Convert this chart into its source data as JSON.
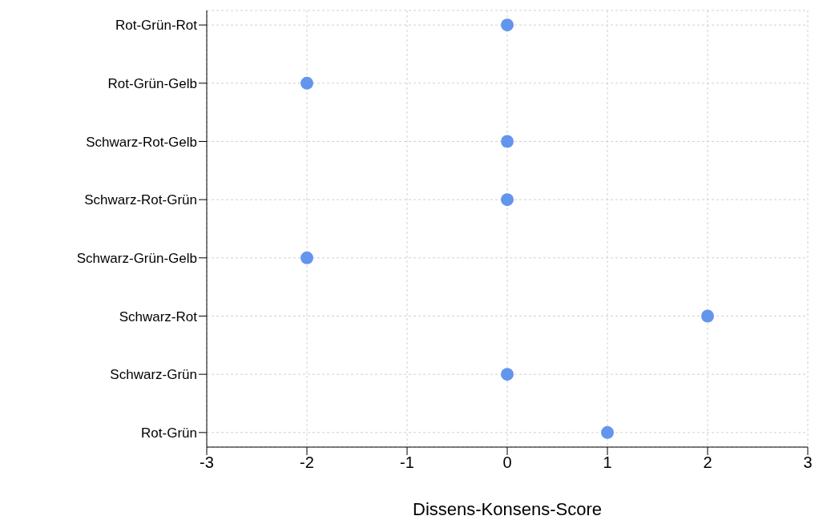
{
  "chart_data": {
    "type": "scatter",
    "orientation": "horizontal",
    "xlabel": "Dissens-Konsens-Score",
    "categories": [
      "Rot-Grün-Rot",
      "Rot-Grün-Gelb",
      "Schwarz-Rot-Gelb",
      "Schwarz-Rot-Grün",
      "Schwarz-Grün-Gelb",
      "Schwarz-Rot",
      "Schwarz-Grün",
      "Rot-Grün"
    ],
    "values": [
      0,
      -2,
      0,
      0,
      -2,
      2,
      0,
      1
    ],
    "color": "#6495ed",
    "marker": "circle",
    "xlim": [
      -3,
      3
    ],
    "xticks": [
      -3,
      -2,
      -1,
      0,
      1,
      2,
      3
    ],
    "grid": true
  }
}
